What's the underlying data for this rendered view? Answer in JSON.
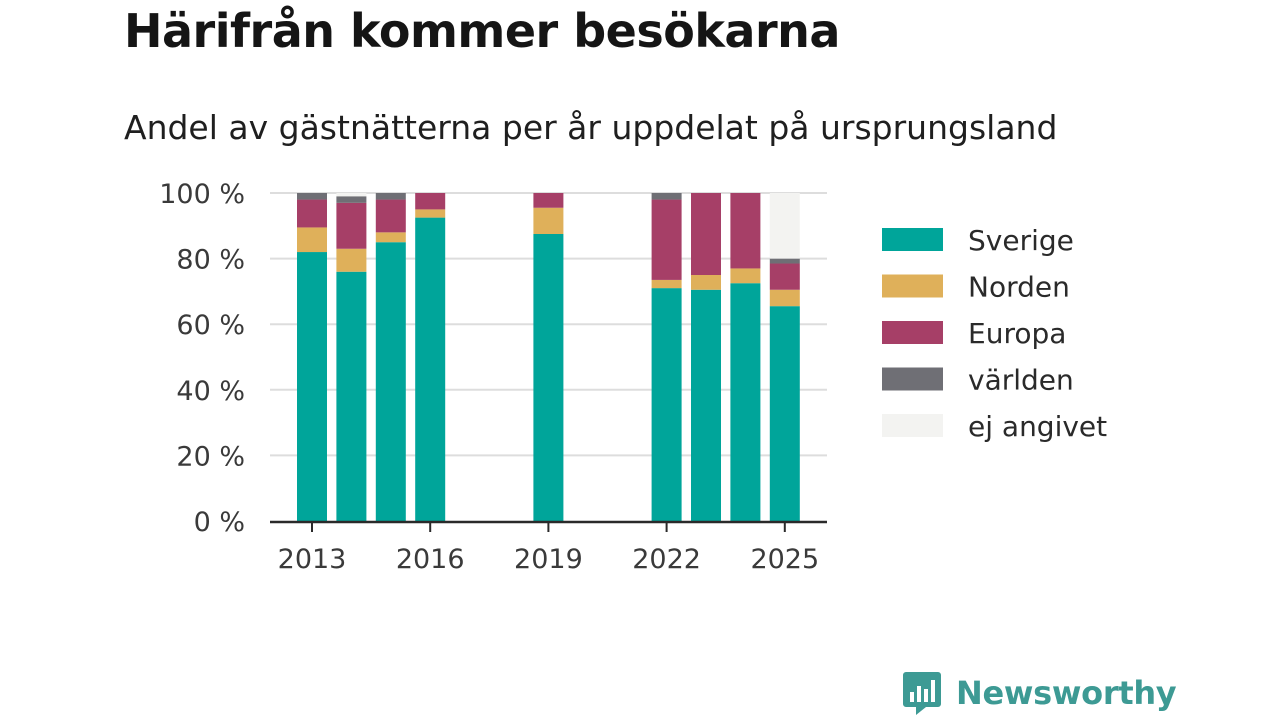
{
  "title": "Härifrån kommer besökarna",
  "subtitle": "Andel av gästnätterna per år uppdelat på ursprungsland",
  "logo_text": "Newsworthy",
  "chart_data": {
    "type": "bar",
    "stacked": true,
    "x": [
      2013,
      2014,
      2015,
      2016,
      2017,
      2018,
      2019,
      2020,
      2021,
      2022,
      2023,
      2024,
      2025
    ],
    "xticks": [
      "2013",
      "2016",
      "2019",
      "2022",
      "2025"
    ],
    "yticks": [
      "0 %",
      "20 %",
      "40 %",
      "60 %",
      "80 %",
      "100 %"
    ],
    "ylim": [
      0,
      100
    ],
    "grid": true,
    "legend_position": "right",
    "series": [
      {
        "name": "Sverige",
        "color": "#00a59a",
        "values": [
          82,
          76,
          85,
          92.5,
          null,
          null,
          87.5,
          null,
          null,
          71,
          70.5,
          72.5,
          65.5
        ]
      },
      {
        "name": "Norden",
        "color": "#dfb05a",
        "values": [
          7.5,
          7,
          3,
          2.5,
          null,
          null,
          8,
          null,
          null,
          2.5,
          4.5,
          4.5,
          5
        ]
      },
      {
        "name": "Europa",
        "color": "#a63f67",
        "values": [
          8.5,
          14,
          10,
          5,
          null,
          null,
          4.5,
          null,
          null,
          24.5,
          25,
          23,
          8
        ]
      },
      {
        "name": "världen",
        "color": "#6f6f75",
        "values": [
          2,
          2,
          2,
          0,
          null,
          null,
          0,
          null,
          null,
          2,
          0,
          0,
          1.5
        ]
      },
      {
        "name": "ej angivet",
        "color": "#f3f3f1",
        "values": [
          0,
          1,
          0,
          0,
          null,
          null,
          0,
          null,
          null,
          0,
          0,
          0,
          20
        ]
      }
    ]
  }
}
